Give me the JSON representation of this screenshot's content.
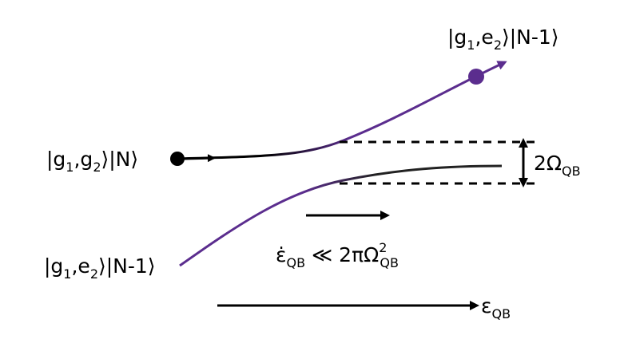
{
  "labels": {
    "top_state": {
      "parts": [
        "|g",
        "1",
        ",e",
        "2",
        "⟩|N-1⟩"
      ]
    },
    "left_state": {
      "parts": [
        "|g",
        "1",
        ",g",
        "2",
        "⟩|N⟩"
      ]
    },
    "bottom_state": {
      "parts": [
        "|g",
        "1",
        ",e",
        "2",
        "⟩|N-1⟩"
      ]
    },
    "gap": {
      "parts": [
        "2Ω",
        "QB"
      ]
    },
    "condition": {
      "parts": [
        "ε̇",
        "QB",
        " ≪ 2πΩ",
        "2",
        "QB"
      ]
    },
    "axis": {
      "parts": [
        "ε",
        "QB"
      ]
    }
  }
}
